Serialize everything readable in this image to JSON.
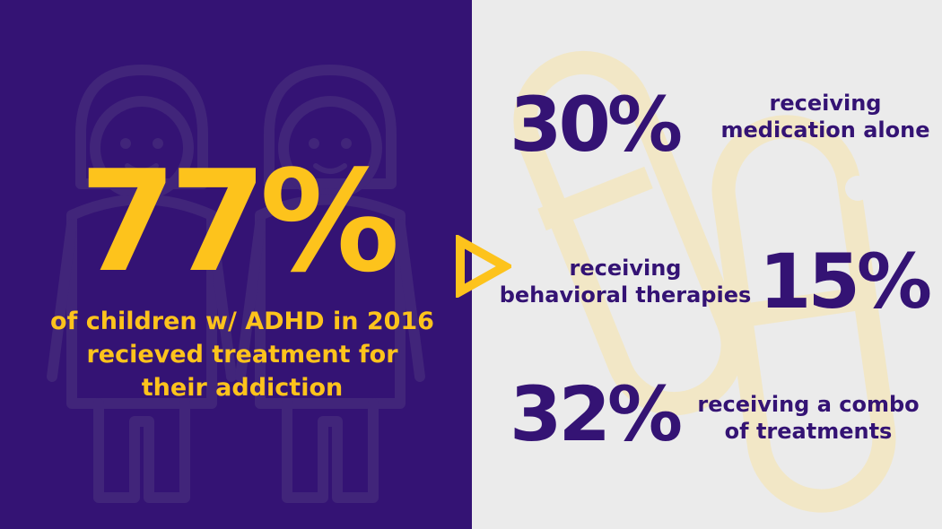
{
  "headline": {
    "value": "77%",
    "caption_lines": [
      "of children w/ ADHD in 2016",
      "recieved treatment for",
      "their addiction"
    ]
  },
  "stats": [
    {
      "value": "30%",
      "label_lines": [
        "receiving",
        "medication alone"
      ]
    },
    {
      "value": "15%",
      "label_lines": [
        "receiving",
        "behavioral therapies"
      ]
    },
    {
      "value": "32%",
      "label_lines": [
        "receiving a combo",
        "of treatments"
      ]
    }
  ],
  "icons": {
    "left_background": "children-icon",
    "right_background": "pill-capsule-icon",
    "pointer": "triangle-arrow-icon"
  },
  "colors": {
    "purple": "#341374",
    "yellow": "#fdc31c",
    "light_gray": "#ebebeb",
    "pill_tint": "#f2e7c6",
    "figure_outline": "#41257a"
  }
}
